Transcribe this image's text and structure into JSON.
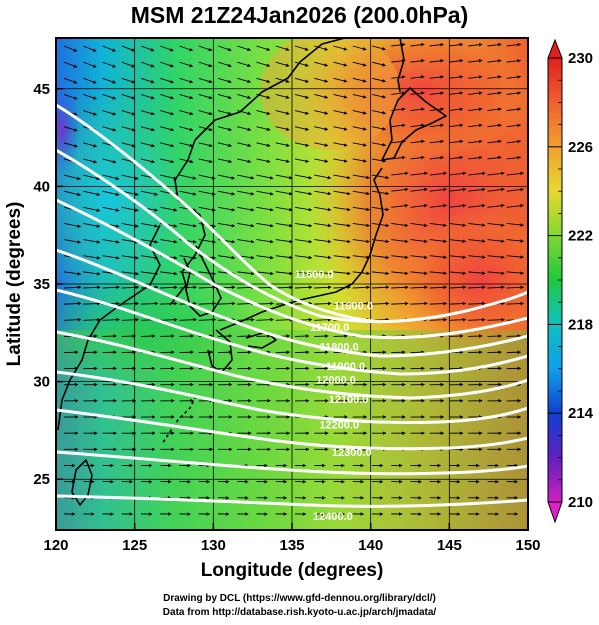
{
  "title": "MSM 21Z24Jan2026 (200.0hPa)",
  "credits": {
    "line1": "Drawing by DCL (https://www.gfd-dennou.org/library/dcl/)",
    "line2": "Data from http://database.rish.kyoto-u.ac.jp/arch/jmadata/"
  },
  "map": {
    "xlabel": "Longitude (degrees)",
    "ylabel": "Latitude  (degrees)",
    "lon_range": [
      120,
      150
    ],
    "lat_range": [
      22.4,
      47.6
    ],
    "lon_ticks": [
      120,
      125,
      130,
      135,
      140,
      145,
      150
    ],
    "lat_ticks": [
      25,
      30,
      35,
      40,
      45
    ],
    "field": "temperature (K)",
    "vectors": "wind",
    "contour_field": "geopotential height (m)",
    "contour_color": "#ffffff",
    "contour_labels": [
      {
        "text": "11500.0",
        "lon": 136.4,
        "lat": 35.3
      },
      {
        "text": "11600.0",
        "lon": 138.9,
        "lat": 33.7
      },
      {
        "text": "11700.0",
        "lon": 137.4,
        "lat": 32.6
      },
      {
        "text": "11800.0",
        "lon": 138.0,
        "lat": 31.6
      },
      {
        "text": "11900.0",
        "lon": 138.4,
        "lat": 30.6
      },
      {
        "text": "12000.0",
        "lon": 137.8,
        "lat": 29.9
      },
      {
        "text": "12100.0",
        "lon": 138.6,
        "lat": 28.9
      },
      {
        "text": "12200.0",
        "lon": 138.0,
        "lat": 27.6
      },
      {
        "text": "12300.0",
        "lon": 138.8,
        "lat": 26.2
      },
      {
        "text": "12400.0",
        "lon": 137.6,
        "lat": 22.9
      }
    ]
  },
  "colorbar": {
    "range": [
      210,
      230
    ],
    "tick_labels": [
      "230",
      "226",
      "222",
      "218",
      "214",
      "210"
    ],
    "tick_values": [
      230,
      226,
      222,
      218,
      214,
      210
    ]
  }
}
